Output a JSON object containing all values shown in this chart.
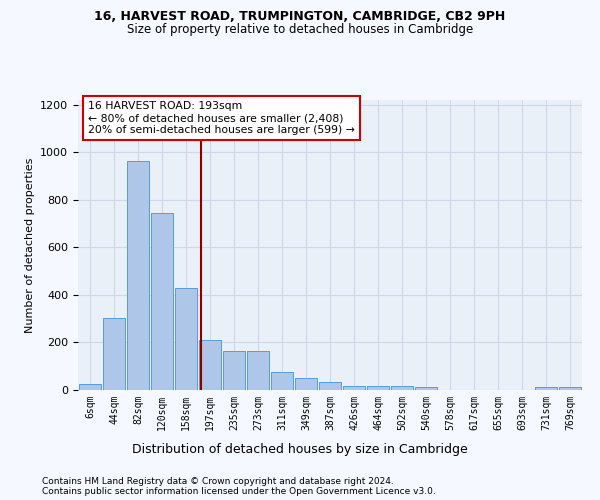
{
  "title1": "16, HARVEST ROAD, TRUMPINGTON, CAMBRIDGE, CB2 9PH",
  "title2": "Size of property relative to detached houses in Cambridge",
  "xlabel": "Distribution of detached houses by size in Cambridge",
  "ylabel": "Number of detached properties",
  "footnote1": "Contains HM Land Registry data © Crown copyright and database right 2024.",
  "footnote2": "Contains public sector information licensed under the Open Government Licence v3.0.",
  "bin_labels": [
    "6sqm",
    "44sqm",
    "82sqm",
    "120sqm",
    "158sqm",
    "197sqm",
    "235sqm",
    "273sqm",
    "311sqm",
    "349sqm",
    "387sqm",
    "426sqm",
    "464sqm",
    "502sqm",
    "540sqm",
    "578sqm",
    "617sqm",
    "655sqm",
    "693sqm",
    "731sqm",
    "769sqm"
  ],
  "bar_values": [
    25,
    305,
    965,
    745,
    430,
    210,
    165,
    165,
    75,
    50,
    33,
    18,
    15,
    15,
    14,
    0,
    0,
    0,
    0,
    13,
    14
  ],
  "bar_color": "#aec6e8",
  "bar_edge_color": "#5b9bd5",
  "vline_x_index": 4.62,
  "vline_color": "#8b0000",
  "annotation_text": "16 HARVEST ROAD: 193sqm\n← 80% of detached houses are smaller (2,408)\n20% of semi-detached houses are larger (599) →",
  "annotation_box_color": "#ffffff",
  "annotation_box_edge": "#cc0000",
  "ylim": [
    0,
    1220
  ],
  "yticks": [
    0,
    200,
    400,
    600,
    800,
    1000,
    1200
  ],
  "grid_color": "#d0d8e8",
  "bg_color": "#eaf0f8",
  "fig_bg_color": "#f5f8ff"
}
